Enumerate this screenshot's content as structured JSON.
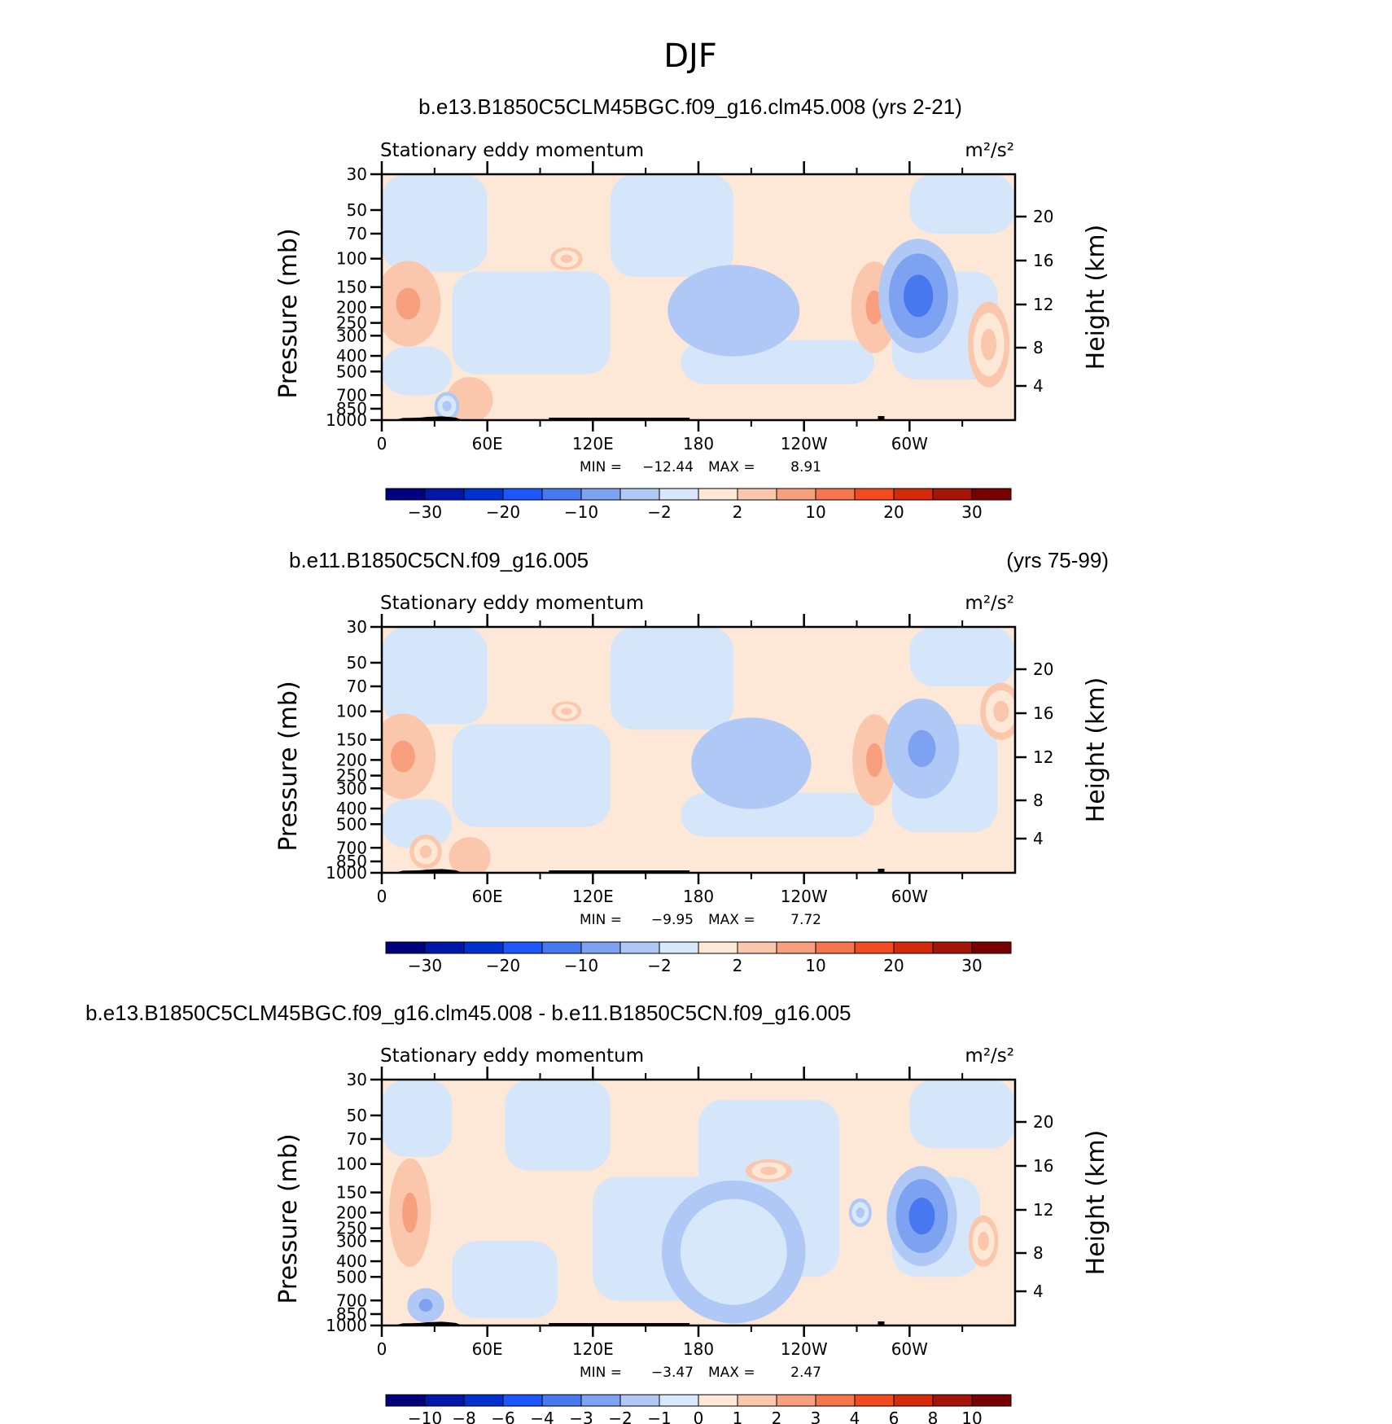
{
  "figure_title": "DJF",
  "chart_data": [
    {
      "type": "heatmap",
      "case": "b.e13.B1850C5CLM45BGC.f09_g16.clm45.008",
      "years": "(yrs 2-21)",
      "title": "b.e13.B1850C5CLM45BGC.f09_g16.clm45.008 (yrs 2-21)",
      "left_string": "Stationary eddy momentum",
      "units": "m²/s²",
      "xlabel": "",
      "ylabel": "Pressure (mb)",
      "y2label": "Height (km)",
      "xticks": [
        "0",
        "60E",
        "120E",
        "180",
        "120W",
        "60W"
      ],
      "yticks": [
        "30",
        "50",
        "70",
        "100",
        "150",
        "200",
        "250",
        "300",
        "400",
        "500",
        "700",
        "850",
        "1000"
      ],
      "y2ticks": [
        "20",
        "16",
        "12",
        "8",
        "4"
      ],
      "min_label": "MIN =",
      "min_value": "−12.44",
      "max_label": "MAX =",
      "max_value": "8.91",
      "colorbar_levels": [
        "−30",
        "−20",
        "−10",
        "−2",
        "2",
        "10",
        "20",
        "30"
      ],
      "features": [
        {
          "lon": 15,
          "pres": 190,
          "value": 8,
          "w": 22,
          "h": 3.0
        },
        {
          "lon": 105,
          "pres": 100,
          "value": 3,
          "w": 8,
          "h": 0.8
        },
        {
          "lon": 200,
          "pres": 210,
          "value": -4,
          "w": 50,
          "h": 3.2
        },
        {
          "lon": 280,
          "pres": 200,
          "value": 6,
          "w": 14,
          "h": 3.2
        },
        {
          "lon": 305,
          "pres": 170,
          "value": -11,
          "w": 28,
          "h": 4.0
        },
        {
          "lon": 345,
          "pres": 340,
          "value": 3,
          "w": 12,
          "h": 3.0
        },
        {
          "lon": 50,
          "pres": 750,
          "value": 3.5,
          "w": 14,
          "h": 1.6
        },
        {
          "lon": 37,
          "pres": 820,
          "value": -3,
          "w": 5,
          "h": 1.0
        }
      ]
    },
    {
      "type": "heatmap",
      "case": "b.e11.B1850C5CN.f09_g16.005",
      "years": "(yrs 75-99)",
      "title": "b.e11.B1850C5CN.f09_g16.005",
      "left_string": "Stationary eddy momentum",
      "units": "m²/s²",
      "xlabel": "",
      "ylabel": "Pressure (mb)",
      "y2label": "Height (km)",
      "xticks": [
        "0",
        "60E",
        "120E",
        "180",
        "120W",
        "60W"
      ],
      "yticks": [
        "30",
        "50",
        "70",
        "100",
        "150",
        "200",
        "250",
        "300",
        "400",
        "500",
        "700",
        "850",
        "1000"
      ],
      "y2ticks": [
        "20",
        "16",
        "12",
        "8",
        "4"
      ],
      "min_label": "MIN =",
      "min_value": "−9.95",
      "max_label": "MAX =",
      "max_value": "7.72",
      "colorbar_levels": [
        "−30",
        "−20",
        "−10",
        "−2",
        "2",
        "10",
        "20",
        "30"
      ],
      "features": [
        {
          "lon": 12,
          "pres": 190,
          "value": 7,
          "w": 22,
          "h": 3.0
        },
        {
          "lon": 105,
          "pres": 100,
          "value": 3,
          "w": 7,
          "h": 0.7
        },
        {
          "lon": 210,
          "pres": 210,
          "value": -4,
          "w": 45,
          "h": 3.2
        },
        {
          "lon": 280,
          "pres": 200,
          "value": 6,
          "w": 13,
          "h": 3.2
        },
        {
          "lon": 307,
          "pres": 170,
          "value": -7,
          "w": 26,
          "h": 3.5
        },
        {
          "lon": 352,
          "pres": 100,
          "value": 3,
          "w": 12,
          "h": 2.0
        },
        {
          "lon": 25,
          "pres": 740,
          "value": 3,
          "w": 8,
          "h": 1.2
        },
        {
          "lon": 50,
          "pres": 800,
          "value": 3.5,
          "w": 12,
          "h": 1.4
        }
      ]
    },
    {
      "type": "heatmap",
      "case": "b.e13.B1850C5CLM45BGC.f09_g16.clm45.008 - b.e11.B1850C5CN.f09_g16.005",
      "title": "b.e13.B1850C5CLM45BGC.f09_g16.clm45.008 - b.e11.B1850C5CN.f09_g16.005",
      "left_string": "Stationary eddy momentum",
      "units": "m²/s²",
      "xlabel": "",
      "ylabel": "Pressure (mb)",
      "y2label": "Height (km)",
      "xticks": [
        "0",
        "60E",
        "120E",
        "180",
        "120W",
        "60W"
      ],
      "yticks": [
        "30",
        "50",
        "70",
        "100",
        "150",
        "200",
        "250",
        "300",
        "400",
        "500",
        "700",
        "850",
        "1000"
      ],
      "y2ticks": [
        "20",
        "16",
        "12",
        "8",
        "4"
      ],
      "min_label": "MIN =",
      "min_value": "−3.47",
      "max_label": "MAX =",
      "max_value": "2.47",
      "colorbar_levels": [
        "−10",
        "−8",
        "−6",
        "−4",
        "−3",
        "−2",
        "−1",
        "0",
        "1",
        "2",
        "3",
        "4",
        "6",
        "8",
        "10"
      ],
      "features": [
        {
          "lon": 16,
          "pres": 200,
          "value": 2.2,
          "w": 12,
          "h": 3.8
        },
        {
          "lon": 220,
          "pres": 110,
          "value": 1.2,
          "w": 14,
          "h": 0.8
        },
        {
          "lon": 307,
          "pres": 210,
          "value": -3.4,
          "w": 24,
          "h": 3.5
        },
        {
          "lon": 272,
          "pres": 200,
          "value": -1.5,
          "w": 4,
          "h": 1.0
        },
        {
          "lon": 342,
          "pres": 300,
          "value": 1.5,
          "w": 7,
          "h": 1.8
        },
        {
          "lon": 25,
          "pres": 750,
          "value": -2.2,
          "w": 10,
          "h": 1.2
        },
        {
          "lon": 200,
          "pres": 350,
          "value": -0.7,
          "w": 55,
          "h": 5.0
        }
      ]
    }
  ],
  "colors": {
    "colorbar": [
      "#00007f",
      "#0018a8",
      "#0030d0",
      "#1c56ff",
      "#4878f0",
      "#7ea2f2",
      "#b0c8f6",
      "#d8e8fb",
      "#fde7d5",
      "#fbc7ac",
      "#f8a07e",
      "#f5764d",
      "#f14b1f",
      "#d52a08",
      "#a61407",
      "#7a0000"
    ],
    "neg_fill": "#d6e6fa",
    "pos_fill": "#fde7d6",
    "topography": "#000000"
  }
}
